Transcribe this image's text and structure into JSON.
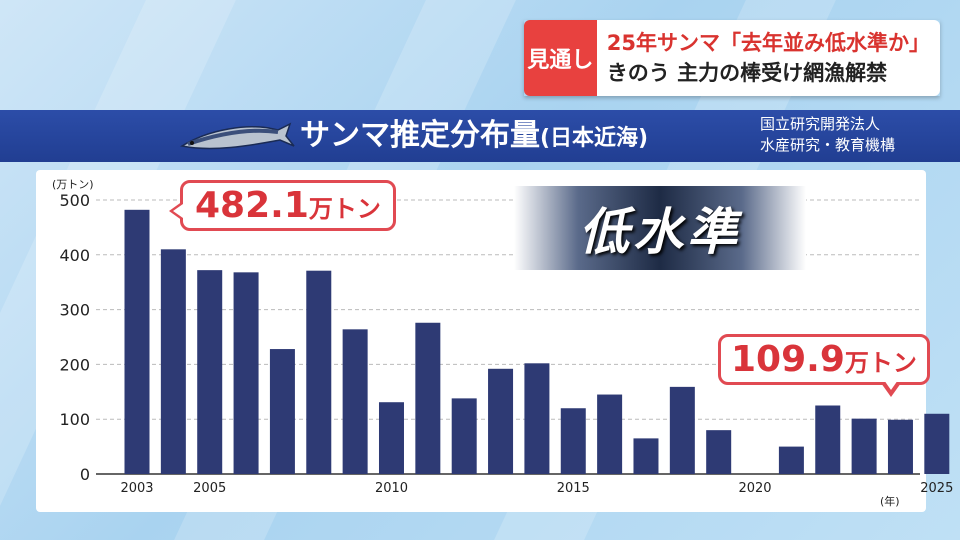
{
  "caption": {
    "badge": "見通し",
    "line1": "25年サンマ「去年並み低水準か」",
    "line2": "きのう 主力の棒受け網漁解禁"
  },
  "title": {
    "main": "サンマ推定分布量",
    "sub": "(日本近海)",
    "icon": "saury-fish-icon"
  },
  "source": {
    "line1": "国立研究開発法人",
    "line2": "水産研究・教育機構"
  },
  "highlight": "低水準",
  "callouts": {
    "max": {
      "num": "482.1",
      "unit": "万トン"
    },
    "latest": {
      "num": "109.9",
      "unit": "万トン"
    }
  },
  "colors": {
    "bar": "#2e3a74",
    "accent": "#e14a52",
    "band": "#2646a0"
  },
  "chart_data": {
    "type": "bar",
    "x": [
      2003,
      2004,
      2005,
      2006,
      2007,
      2008,
      2009,
      2010,
      2011,
      2012,
      2013,
      2014,
      2015,
      2016,
      2017,
      2018,
      2019,
      2020,
      2021,
      2022,
      2023,
      2024,
      2025
    ],
    "values": [
      482.1,
      410,
      372,
      368,
      228,
      371,
      264,
      131,
      276,
      138,
      192,
      202,
      120,
      145,
      65,
      159,
      80,
      null,
      50,
      125,
      101,
      99,
      109.9
    ],
    "ylabel": "(万トン)",
    "xunit": "(年)",
    "ylim": [
      0,
      500
    ],
    "yticks": [
      0,
      100,
      200,
      300,
      400,
      500
    ],
    "xtick_labels": [
      {
        "year": 2003,
        "label": "2003"
      },
      {
        "year": 2005,
        "label": "2005"
      },
      {
        "year": 2010,
        "label": "2010"
      },
      {
        "year": 2015,
        "label": "2015"
      },
      {
        "year": 2020,
        "label": "2020"
      },
      {
        "year": 2025,
        "label": "2025"
      }
    ],
    "grid": true
  }
}
